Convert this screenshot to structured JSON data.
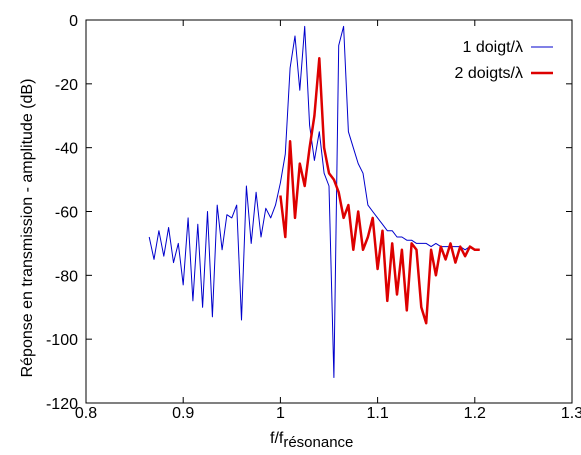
{
  "chart_data": {
    "type": "line",
    "xlabel": "f/f",
    "xlabel_sub": "résonance",
    "ylabel": "Réponse en transmission - amplitude (dB)",
    "xlim": [
      0.8,
      1.3
    ],
    "ylim": [
      -120,
      0
    ],
    "xticks": [
      "0.8",
      "0.9",
      "1",
      "1.1",
      "1.2",
      "1.3"
    ],
    "yticks": [
      "0",
      "-20",
      "-40",
      "-60",
      "-80",
      "-100",
      "-120"
    ],
    "grid": false,
    "legend_position": "top-right",
    "series": [
      {
        "name": "1 doigt/λ",
        "color": "#0000cc",
        "x": [
          0.865,
          0.87,
          0.875,
          0.88,
          0.885,
          0.89,
          0.895,
          0.9,
          0.905,
          0.91,
          0.915,
          0.92,
          0.925,
          0.93,
          0.935,
          0.94,
          0.945,
          0.95,
          0.955,
          0.96,
          0.965,
          0.97,
          0.975,
          0.98,
          0.985,
          0.99,
          0.995,
          1.0,
          1.005,
          1.01,
          1.015,
          1.02,
          1.025,
          1.03,
          1.035,
          1.04,
          1.045,
          1.05,
          1.055,
          1.06,
          1.065,
          1.07,
          1.075,
          1.08,
          1.085,
          1.09,
          1.095,
          1.1,
          1.105,
          1.11,
          1.115,
          1.12,
          1.125,
          1.13,
          1.135,
          1.14,
          1.145,
          1.15,
          1.155,
          1.16,
          1.165,
          1.17,
          1.175,
          1.18,
          1.185,
          1.19,
          1.195,
          1.2,
          1.205
        ],
        "y": [
          -68,
          -75,
          -66,
          -74,
          -65,
          -76,
          -70,
          -83,
          -62,
          -88,
          -64,
          -90,
          -60,
          -93,
          -58,
          -72,
          -61,
          -62,
          -58,
          -94,
          -52,
          -70,
          -54,
          -68,
          -59,
          -62,
          -58,
          -51,
          -42,
          -15,
          -5,
          -22,
          -2,
          -33,
          -44,
          -35,
          -48,
          -52,
          -112,
          -8,
          -2,
          -35,
          -40,
          -45,
          -48,
          -58,
          -60,
          -62,
          -64,
          -66,
          -66,
          -68,
          -68,
          -69,
          -69,
          -70,
          -70,
          -70,
          -71,
          -70,
          -71,
          -71,
          -71,
          -71,
          -71,
          -72,
          -71,
          -72,
          -72
        ]
      },
      {
        "name": "2 doigts/λ",
        "color": "#dd0000",
        "x": [
          1.0,
          1.005,
          1.01,
          1.015,
          1.02,
          1.025,
          1.03,
          1.035,
          1.04,
          1.045,
          1.05,
          1.055,
          1.06,
          1.065,
          1.07,
          1.075,
          1.08,
          1.085,
          1.09,
          1.095,
          1.1,
          1.105,
          1.11,
          1.115,
          1.12,
          1.125,
          1.13,
          1.135,
          1.14,
          1.145,
          1.15,
          1.155,
          1.16,
          1.165,
          1.17,
          1.175,
          1.18,
          1.185,
          1.19,
          1.195,
          1.2,
          1.205
        ],
        "y": [
          -55,
          -68,
          -38,
          -62,
          -45,
          -52,
          -40,
          -30,
          -12,
          -40,
          -48,
          -50,
          -54,
          -62,
          -58,
          -72,
          -60,
          -72,
          -68,
          -62,
          -78,
          -66,
          -88,
          -70,
          -86,
          -72,
          -91,
          -70,
          -72,
          -90,
          -95,
          -72,
          -80,
          -71,
          -75,
          -70,
          -76,
          -71,
          -74,
          -71,
          -72,
          -72
        ]
      }
    ]
  }
}
